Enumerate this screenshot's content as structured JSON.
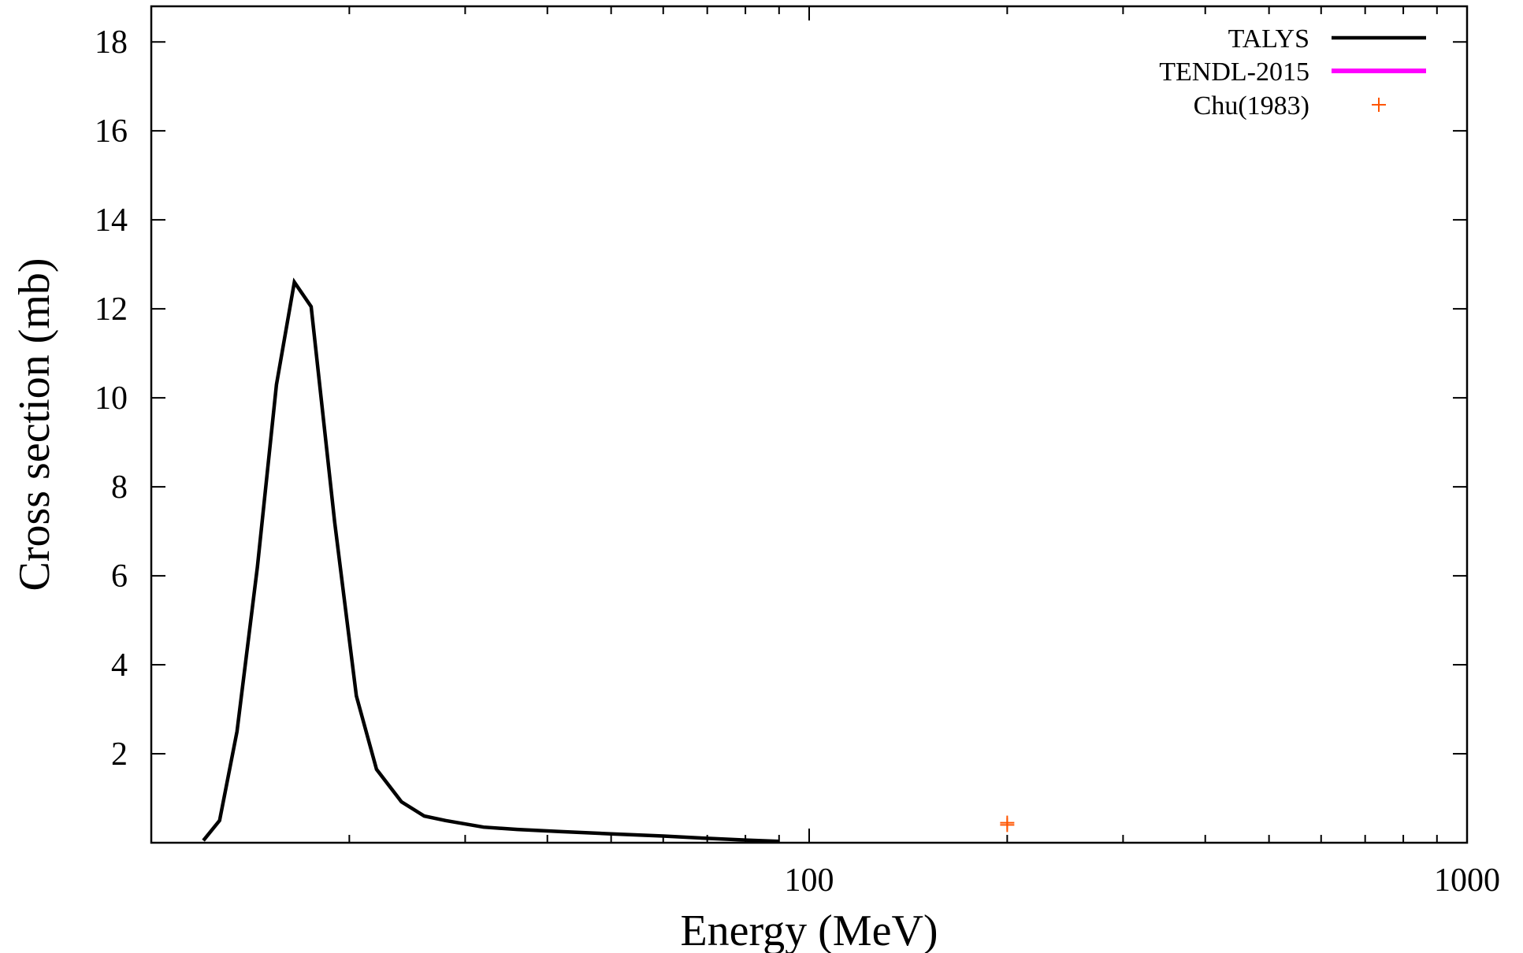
{
  "chart_data": {
    "type": "line",
    "title": "",
    "xlabel": "Energy (MeV)",
    "ylabel": "Cross section (mb)",
    "xscale": "log",
    "xlim": [
      10,
      1000
    ],
    "ylim": [
      0,
      18.8
    ],
    "grid": false,
    "legend_position": "top-right",
    "x_ticks": [
      {
        "value": 100,
        "label": "100"
      },
      {
        "value": 1000,
        "label": "1000"
      }
    ],
    "x_minor_ticks": [
      20,
      30,
      40,
      50,
      60,
      70,
      80,
      90,
      200,
      300,
      400,
      500,
      600,
      700,
      800,
      900
    ],
    "y_ticks": [
      {
        "value": 2,
        "label": "2"
      },
      {
        "value": 4,
        "label": "4"
      },
      {
        "value": 6,
        "label": "6"
      },
      {
        "value": 8,
        "label": "8"
      },
      {
        "value": 10,
        "label": "10"
      },
      {
        "value": 12,
        "label": "12"
      },
      {
        "value": 14,
        "label": "14"
      },
      {
        "value": 16,
        "label": "16"
      },
      {
        "value": 18,
        "label": "18"
      }
    ],
    "series": [
      {
        "name": "TALYS",
        "style": "line",
        "color": "#000000",
        "x": [
          12,
          12.7,
          13.5,
          14.5,
          15.5,
          16.5,
          17.5,
          19,
          20.5,
          22,
          24,
          26,
          28,
          32,
          36,
          42,
          50,
          60,
          70,
          80,
          90
        ],
        "y": [
          0.05,
          0.5,
          2.5,
          6.2,
          10.3,
          12.6,
          12.05,
          7.2,
          3.3,
          1.65,
          0.92,
          0.6,
          0.5,
          0.35,
          0.3,
          0.25,
          0.2,
          0.15,
          0.1,
          0.06,
          0.03
        ]
      },
      {
        "name": "TENDL-2015",
        "style": "line",
        "color": "#ff00ff",
        "x": [],
        "y": []
      },
      {
        "name": "Chu(1983)",
        "style": "points",
        "marker": "+",
        "color": "#ff5500",
        "x": [
          200,
          200
        ],
        "y": [
          0.4,
          0.45
        ]
      }
    ]
  }
}
